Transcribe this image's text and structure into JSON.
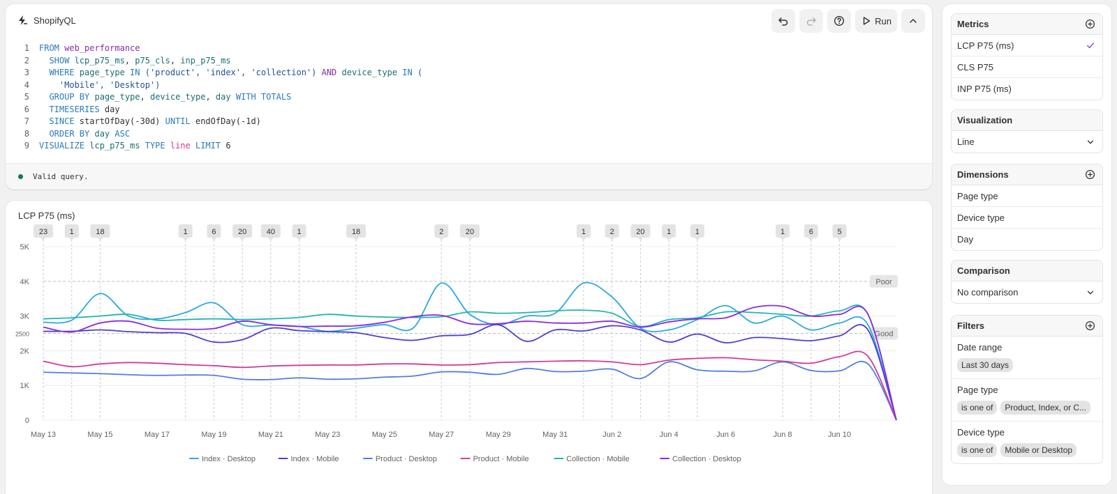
{
  "editor": {
    "brand": "ShopifyQL",
    "toolbar": {
      "undo_icon": "undo-icon",
      "redo_icon": "redo-icon",
      "help_icon": "help-icon",
      "run_label": "Run",
      "collapse_icon": "chevron-up-icon"
    },
    "code_lines": [
      [
        [
          "kw",
          "FROM "
        ],
        [
          "tb",
          "web_performance"
        ]
      ],
      [
        [
          "kw",
          "  SHOW "
        ],
        [
          "fn",
          "lcp_p75_ms"
        ],
        [
          "cl",
          ", "
        ],
        [
          "fn",
          "p75_cls"
        ],
        [
          "cl",
          ", "
        ],
        [
          "fn",
          "inp_p75_ms"
        ]
      ],
      [
        [
          "kw",
          "  WHERE "
        ],
        [
          "fn",
          "page_type "
        ],
        [
          "kw",
          "IN "
        ],
        [
          "st",
          "('product', 'index', 'collection') "
        ],
        [
          "tb",
          "AND "
        ],
        [
          "fn",
          "device_type "
        ],
        [
          "kw",
          "IN "
        ],
        [
          "st",
          "("
        ]
      ],
      [
        [
          "st",
          "    'Mobile', 'Desktop')"
        ]
      ],
      [
        [
          "kw",
          "  GROUP BY "
        ],
        [
          "fn",
          "page_type"
        ],
        [
          "cl",
          ", "
        ],
        [
          "fn",
          "device_type"
        ],
        [
          "cl",
          ", "
        ],
        [
          "fn",
          "day "
        ],
        [
          "kw",
          "WITH TOTALS"
        ]
      ],
      [
        [
          "kw",
          "  TIMESERIES "
        ],
        [
          "cl",
          "day"
        ]
      ],
      [
        [
          "kw",
          "  SINCE "
        ],
        [
          "cl",
          "startOfDay(-30d) "
        ],
        [
          "kw",
          "UNTIL "
        ],
        [
          "cl",
          "endOfDay(-1d)"
        ]
      ],
      [
        [
          "kw",
          "  ORDER BY "
        ],
        [
          "fn",
          "day "
        ],
        [
          "kw",
          "ASC"
        ]
      ],
      [
        [
          "kw",
          "VISUALIZE "
        ],
        [
          "fn",
          "lcp_p75_ms "
        ],
        [
          "kw",
          "TYPE "
        ],
        [
          "vz",
          "line "
        ],
        [
          "kw",
          "LIMIT "
        ],
        [
          "cl",
          "6"
        ]
      ]
    ],
    "status": "Valid query."
  },
  "chart_data": {
    "type": "line",
    "title": "LCP P75 (ms)",
    "ylim": [
      0,
      5000
    ],
    "y_ticks": [
      {
        "v": 0,
        "label": "0"
      },
      {
        "v": 1000,
        "label": "1K"
      },
      {
        "v": 2000,
        "label": "2K"
      },
      {
        "v": 2500,
        "label": "2500"
      },
      {
        "v": 3000,
        "label": "3K"
      },
      {
        "v": 4000,
        "label": "4K"
      },
      {
        "v": 5000,
        "label": "5K"
      }
    ],
    "thresholds": [
      {
        "v": 4000,
        "label": "Poor"
      },
      {
        "v": 2500,
        "label": "Good"
      }
    ],
    "x_ticks": [
      "May 13",
      "May 15",
      "May 17",
      "May 19",
      "May 21",
      "May 23",
      "May 25",
      "May 27",
      "May 29",
      "May 31",
      "Jun 2",
      "Jun 4",
      "Jun 6",
      "Jun 8",
      "Jun 10"
    ],
    "annotations": [
      {
        "day": 0,
        "label": "23"
      },
      {
        "day": 1,
        "label": "1"
      },
      {
        "day": 2,
        "label": "18"
      },
      {
        "day": 5,
        "label": "1"
      },
      {
        "day": 6,
        "label": "6"
      },
      {
        "day": 7,
        "label": "20"
      },
      {
        "day": 8,
        "label": "40"
      },
      {
        "day": 9,
        "label": "1"
      },
      {
        "day": 11,
        "label": "18"
      },
      {
        "day": 14,
        "label": "2"
      },
      {
        "day": 15,
        "label": "20"
      },
      {
        "day": 19,
        "label": "1"
      },
      {
        "day": 20,
        "label": "2"
      },
      {
        "day": 21,
        "label": "20"
      },
      {
        "day": 22,
        "label": "1"
      },
      {
        "day": 23,
        "label": "1"
      },
      {
        "day": 26,
        "label": "1"
      },
      {
        "day": 27,
        "label": "6"
      },
      {
        "day": 28,
        "label": "5"
      }
    ],
    "series": [
      {
        "name": "Index · Desktop",
        "color": "#29a9e1",
        "values": [
          2820,
          2880,
          3650,
          3000,
          2920,
          3100,
          3380,
          2750,
          2740,
          2700,
          2560,
          2650,
          2750,
          2650,
          3950,
          3050,
          2750,
          3000,
          3080,
          3950,
          3550,
          2650,
          2600,
          2900,
          3300,
          2800,
          3000,
          2600,
          2800,
          2750,
          0
        ]
      },
      {
        "name": "Index · Mobile",
        "color": "#4b3fd4",
        "values": [
          2560,
          2560,
          2600,
          2550,
          2520,
          2500,
          2250,
          2320,
          2650,
          2580,
          2550,
          2520,
          2380,
          2300,
          2430,
          2470,
          2750,
          2270,
          2600,
          2570,
          2720,
          2600,
          2250,
          2480,
          2230,
          2380,
          2350,
          2290,
          2430,
          2600,
          0
        ]
      },
      {
        "name": "Product · Desktop",
        "color": "#4f7de8",
        "values": [
          1380,
          1360,
          1340,
          1310,
          1290,
          1300,
          1290,
          1180,
          1170,
          1220,
          1180,
          1190,
          1240,
          1270,
          1390,
          1380,
          1320,
          1490,
          1400,
          1410,
          1470,
          1200,
          1680,
          1450,
          1410,
          1420,
          1680,
          1430,
          1420,
          1620,
          0
        ]
      },
      {
        "name": "Product · Mobile",
        "color": "#d03a9e",
        "values": [
          1700,
          1540,
          1620,
          1660,
          1640,
          1600,
          1570,
          1520,
          1560,
          1580,
          1590,
          1590,
          1620,
          1620,
          1590,
          1600,
          1660,
          1680,
          1700,
          1710,
          1680,
          1600,
          1730,
          1780,
          1800,
          1740,
          1700,
          1640,
          1830,
          1840,
          0
        ]
      },
      {
        "name": "Collection · Mobile",
        "color": "#20b5b5",
        "values": [
          2920,
          2950,
          3000,
          3050,
          2880,
          2900,
          2920,
          2900,
          2920,
          2960,
          3050,
          3000,
          2970,
          2960,
          2980,
          3120,
          3080,
          3100,
          3150,
          3170,
          3080,
          2700,
          2900,
          2950,
          3120,
          3100,
          3050,
          3000,
          3150,
          3050,
          0
        ]
      },
      {
        "name": "Collection · Desktop",
        "color": "#8a2be2",
        "values": [
          2680,
          2540,
          2800,
          2850,
          2650,
          2620,
          2640,
          2850,
          2750,
          2700,
          2710,
          2720,
          2820,
          2980,
          3020,
          2780,
          2780,
          2850,
          2800,
          2800,
          2850,
          2680,
          2830,
          2920,
          2950,
          3250,
          3280,
          3000,
          3050,
          3050,
          0
        ]
      }
    ]
  },
  "side": {
    "metrics": {
      "title": "Metrics",
      "items": [
        "LCP P75 (ms)",
        "CLS P75",
        "INP P75 (ms)"
      ]
    },
    "visualization": {
      "title": "Visualization",
      "value": "Line"
    },
    "dimensions": {
      "title": "Dimensions",
      "items": [
        "Page type",
        "Device type",
        "Day"
      ]
    },
    "comparison": {
      "title": "Comparison",
      "value": "No comparison"
    },
    "filters": {
      "title": "Filters",
      "date_range": {
        "label": "Date range",
        "chip": "Last 30 days"
      },
      "page_type": {
        "label": "Page type",
        "op": "is one of",
        "value": "Product, Index, or C..."
      },
      "device_type": {
        "label": "Device type",
        "op": "is one of",
        "value": "Mobile or Desktop"
      }
    }
  }
}
